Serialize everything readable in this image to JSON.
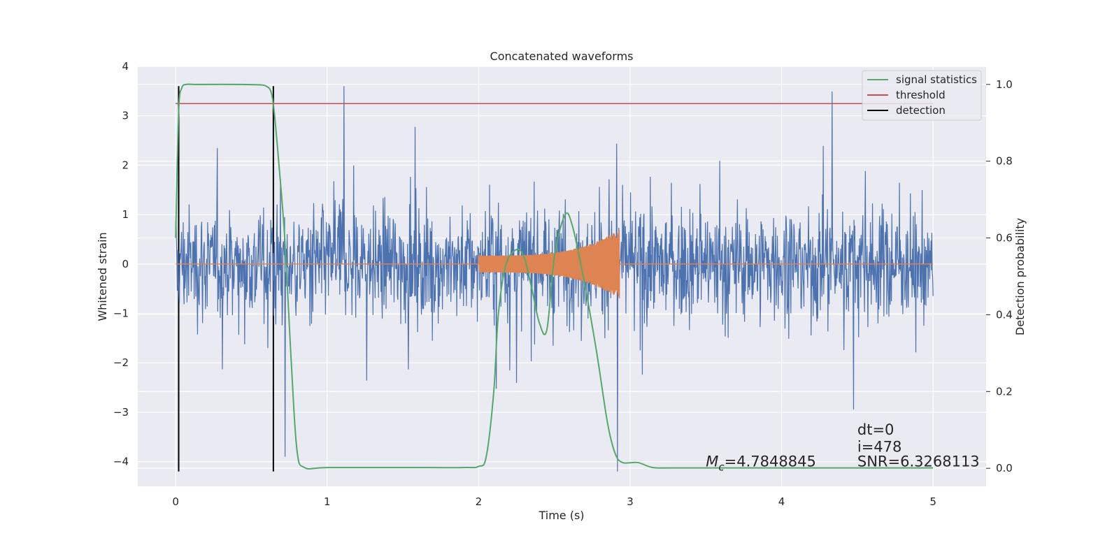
{
  "chart_data": {
    "type": "line",
    "title": "Concatenated waveforms",
    "xlabel": "Time (s)",
    "ylabel": "Whitened strain",
    "ylabel_right": "Detection probability",
    "xlim": [
      -0.25,
      5.35
    ],
    "ylim": [
      -4.5,
      4.0
    ],
    "ylim_right": [
      -0.047,
      1.047
    ],
    "x_ticks": [
      "0",
      "1",
      "2",
      "3",
      "4",
      "5"
    ],
    "y_ticks": [
      "4",
      "3",
      "2",
      "1",
      "0",
      "−1",
      "−2",
      "−3",
      "−4"
    ],
    "y_ticks_right": [
      "1.0",
      "0.8",
      "0.6",
      "0.4",
      "0.2",
      "0.0"
    ],
    "grid": true,
    "legend_position": "top-right",
    "series": [
      {
        "name": "",
        "color": "#4c72b0",
        "kind": "noise",
        "x_range": [
          0,
          5
        ],
        "amplitude": 1.1,
        "max": 3.6,
        "min": -4.2
      },
      {
        "name": "",
        "color": "#dd8452",
        "kind": "chirp",
        "x_range": [
          2.0,
          2.93
        ],
        "start_amplitude": 0.17,
        "end_amplitude": 0.7
      },
      {
        "name": "signal statistics",
        "color": "#55a868",
        "axis": "right",
        "x": [
          0.0,
          0.02,
          0.04,
          0.07,
          0.12,
          0.2,
          0.4,
          0.55,
          0.6,
          0.63,
          0.65,
          0.68,
          0.72,
          0.76,
          0.8,
          0.85,
          1.0,
          1.5,
          1.9,
          2.0,
          2.05,
          2.1,
          2.13,
          2.18,
          2.25,
          2.3,
          2.35,
          2.4,
          2.45,
          2.5,
          2.57,
          2.62,
          2.7,
          2.78,
          2.85,
          2.9,
          2.95,
          3.05,
          3.15,
          3.3,
          4.0,
          4.5,
          5.0
        ],
        "y": [
          0.6,
          0.93,
          0.99,
          1.0,
          1.0,
          1.0,
          1.0,
          0.999,
          0.995,
          0.98,
          0.93,
          0.8,
          0.6,
          0.3,
          0.05,
          0.002,
          0.002,
          0.002,
          0.002,
          0.005,
          0.03,
          0.2,
          0.4,
          0.53,
          0.57,
          0.55,
          0.47,
          0.38,
          0.36,
          0.55,
          0.66,
          0.63,
          0.48,
          0.3,
          0.12,
          0.04,
          0.015,
          0.015,
          0.002,
          0.001,
          0.001,
          0.001,
          0.001
        ]
      },
      {
        "name": "threshold",
        "color": "#c44e52",
        "axis": "right",
        "x": [
          0,
          5
        ],
        "y": [
          0.95,
          0.95
        ]
      },
      {
        "name": "detection",
        "color": "#000000",
        "kind": "vertical",
        "x": [
          0.02,
          0.645
        ],
        "y_span": [
          -4.2,
          3.6
        ]
      }
    ],
    "annotations": [
      {
        "text": "dt=0",
        "x": 4.5,
        "y": -3.45
      },
      {
        "text": "i=478",
        "x": 4.5,
        "y": -3.8
      },
      {
        "text": "SNR=6.3268113",
        "x": 4.5,
        "y": -4.1
      },
      {
        "text": "=4.7848845",
        "math": "M",
        "subscript": "c",
        "x": 3.5,
        "y": -4.1
      }
    ]
  }
}
